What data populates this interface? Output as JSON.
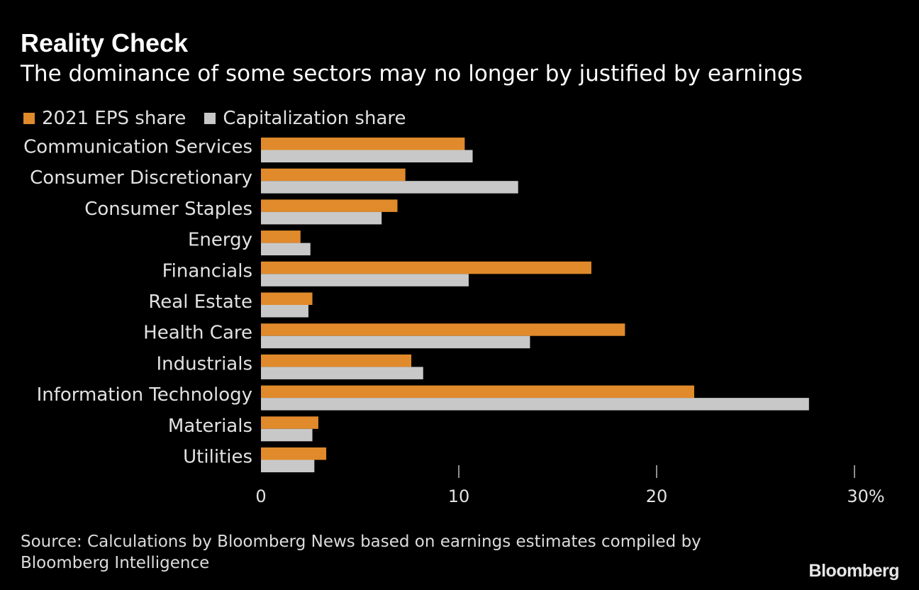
{
  "title": "Reality Check",
  "subtitle": "The dominance of some sectors may no longer by justified by earnings",
  "legend": [
    {
      "label": "2021 EPS share",
      "color": "#e08a2b"
    },
    {
      "label": "Capitalization share",
      "color": "#c8c8c8"
    }
  ],
  "source": "Source: Calculations by Bloomberg News based on earnings estimates compiled by Bloomberg Intelligence",
  "brand": "Bloomberg",
  "chart_data": {
    "type": "bar",
    "orientation": "horizontal",
    "categories": [
      "Communication Services",
      "Consumer Discretionary",
      "Consumer Staples",
      "Energy",
      "Financials",
      "Real Estate",
      "Health Care",
      "Industrials",
      "Information Technology",
      "Materials",
      "Utilities"
    ],
    "series": [
      {
        "name": "2021 EPS share",
        "color": "#e08a2b",
        "values": [
          10.3,
          7.3,
          6.9,
          2.0,
          16.7,
          2.6,
          18.4,
          7.6,
          21.9,
          2.9,
          3.3
        ]
      },
      {
        "name": "Capitalization share",
        "color": "#c8c8c8",
        "values": [
          10.7,
          13.0,
          6.1,
          2.5,
          10.5,
          2.4,
          13.6,
          8.2,
          27.7,
          2.6,
          2.7
        ]
      }
    ],
    "xticks": [
      {
        "value": 0,
        "label": "0"
      },
      {
        "value": 10,
        "label": "10"
      },
      {
        "value": 20,
        "label": "20"
      },
      {
        "value": 30,
        "label": "30%"
      }
    ],
    "xlim": [
      0,
      30
    ],
    "grid": false,
    "legend_position": "top-left"
  }
}
